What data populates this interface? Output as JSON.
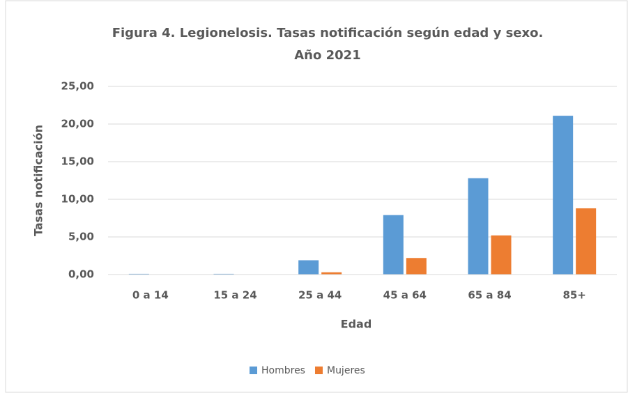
{
  "chart_data": {
    "type": "bar",
    "title": [
      "Figura 4. Legionelosis. Tasas notificación según edad y sexo.",
      "Año 2021"
    ],
    "x_label": "Edad",
    "y_label": "Tasas notificación",
    "categories": [
      "0 a 14",
      "15 a 24",
      "25 a 44",
      "45 a 64",
      "65 a 84",
      "85+"
    ],
    "series": [
      {
        "name": "Hombres",
        "color": "#5b9bd5",
        "values": [
          0.1,
          0.1,
          1.9,
          7.9,
          12.8,
          21.1
        ]
      },
      {
        "name": "Mujeres",
        "color": "#ed7d31",
        "values": [
          0,
          0,
          0.3,
          2.2,
          5.2,
          8.8
        ]
      }
    ],
    "ylim": [
      0,
      25
    ],
    "yticks": [
      {
        "value": 0,
        "label": "0,00"
      },
      {
        "value": 5,
        "label": "5,00"
      },
      {
        "value": 10,
        "label": "10,00"
      },
      {
        "value": 15,
        "label": "15,00"
      },
      {
        "value": 20,
        "label": "20,00"
      },
      {
        "value": 25,
        "label": "25,00"
      }
    ],
    "grid": true,
    "legend": "bottom"
  }
}
